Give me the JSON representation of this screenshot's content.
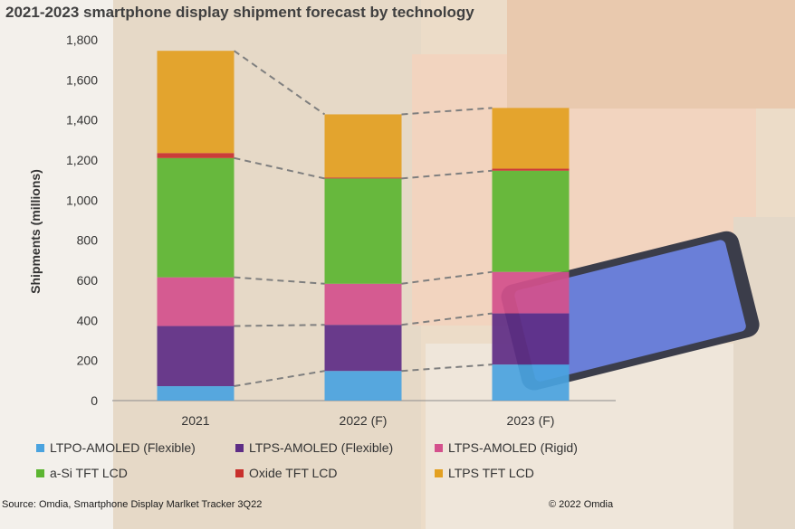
{
  "title": "2021-2023 smartphone display shipment forecast by technology",
  "source": "Source: Omdia, Smartphone Display Marlket Tracker 3Q22",
  "copyright": "© 2022 Omdia",
  "chart_data": {
    "type": "bar",
    "stacked": true,
    "title": "2021-2023 smartphone display shipment forecast by technology",
    "xlabel": "",
    "ylabel": "Shipments (millions)",
    "ylim": [
      0,
      1800
    ],
    "yticks": [
      0,
      200,
      400,
      600,
      800,
      1000,
      1200,
      1400,
      1600,
      1800
    ],
    "ytick_labels": [
      "0",
      "200",
      "400",
      "600",
      "800",
      "1,000",
      "1,200",
      "1,400",
      "1,600",
      "1,800"
    ],
    "categories": [
      "2021",
      "2022 (F)",
      "2023 (F)"
    ],
    "series": [
      {
        "name": "LTPO-AMOLED (Flexible)",
        "color": "#4aa3df",
        "values": [
          72,
          148,
          180
        ]
      },
      {
        "name": "LTPS-AMOLED (Flexible)",
        "color": "#5e2d86",
        "values": [
          300,
          230,
          255
        ]
      },
      {
        "name": "LTPS-AMOLED (Rigid)",
        "color": "#d4508c",
        "values": [
          243,
          205,
          207
        ]
      },
      {
        "name": "a-Si TFT LCD",
        "color": "#5cb531",
        "values": [
          595,
          525,
          505
        ]
      },
      {
        "name": "Oxide TFT LCD",
        "color": "#c8302c",
        "values": [
          25,
          5,
          10
        ]
      },
      {
        "name": "LTPS TFT LCD",
        "color": "#e3a021",
        "values": [
          510,
          315,
          303
        ]
      }
    ],
    "grid": false,
    "legend": "bottom"
  }
}
